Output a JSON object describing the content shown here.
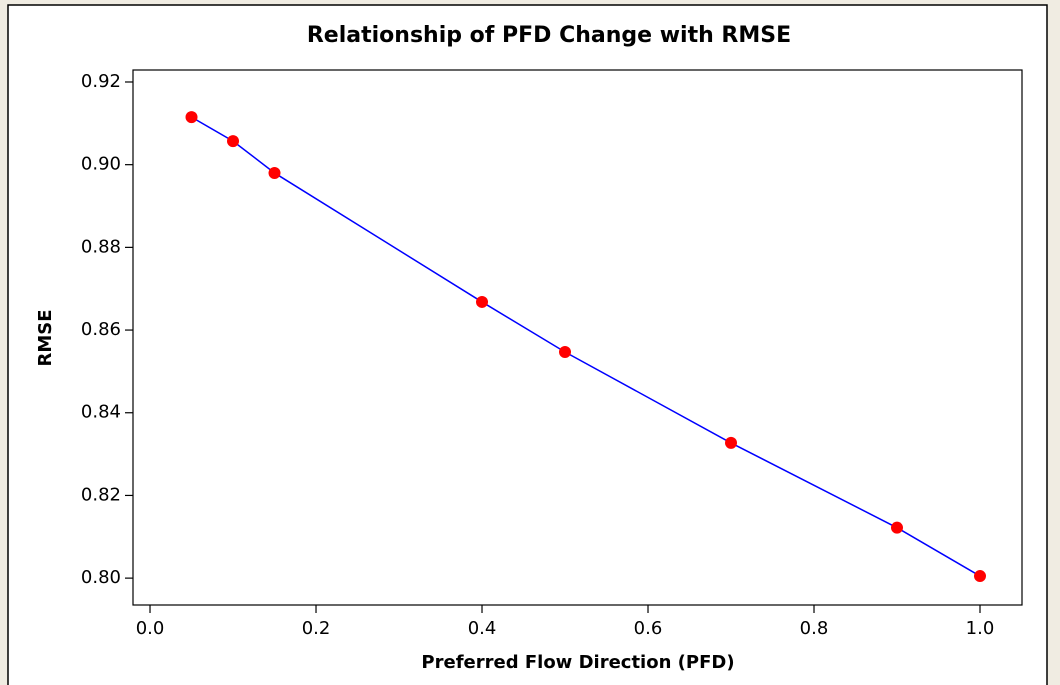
{
  "chart_data": {
    "type": "line",
    "title": "Relationship of PFD Change with RMSE",
    "x_label": "Preferred Flow Direction (PFD)",
    "y_label": "RMSE",
    "x": [
      0.05,
      0.1,
      0.15,
      0.4,
      0.5,
      0.7,
      0.9,
      1.0
    ],
    "series": [
      {
        "name": "RMSE",
        "line_color": "#0000ff",
        "marker_color": "#ff0000",
        "values": [
          0.9115,
          0.9057,
          0.898,
          0.8668,
          0.8547,
          0.8327,
          0.8122,
          0.8005
        ]
      }
    ],
    "xlim": [
      -0.0205,
      1.0506
    ],
    "ylim": [
      0.7935,
      0.9229
    ],
    "xticks": [
      {
        "value": 0,
        "label": "0.0"
      },
      0.2,
      0.4,
      0.6,
      0.8,
      {
        "value": 1,
        "label": "1.0"
      }
    ],
    "yticks": [
      {
        "value": 0.8,
        "label": "0.80"
      },
      0.82,
      0.84,
      0.86,
      0.88,
      {
        "value": 0.9,
        "label": "0.90"
      },
      0.92
    ],
    "grid": false
  }
}
